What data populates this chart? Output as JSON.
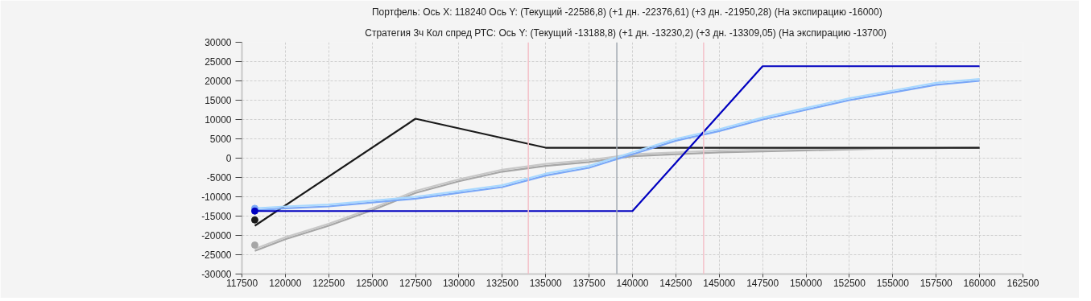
{
  "chart_data": {
    "type": "line",
    "title": "Портфель: Ось X: 118240 Ось Y:  (Текущий -22586,8)  (+1 дн. -22376,61)  (+3 дн. -21950,28)  (На экспирацию -16000)",
    "subtitle": "Стратегия 3ч Кол спред РТС:  Ось Y:  (Текущий -13188,8)  (+1 дн. -13230,2)  (+3 дн. -13309,05)  (На экспирацию -13700)",
    "xlim": [
      117500,
      162500
    ],
    "xticks": [
      117500,
      120000,
      122500,
      125000,
      127500,
      130000,
      132500,
      135000,
      137500,
      140000,
      142500,
      145000,
      147500,
      150000,
      152500,
      155000,
      157500,
      160000,
      162500
    ],
    "ylim": [
      -30000,
      30000
    ],
    "yticks": [
      -30000,
      -25000,
      -20000,
      -15000,
      -10000,
      -5000,
      0,
      5000,
      10000,
      15000,
      20000,
      25000,
      30000
    ],
    "grid": true,
    "line_style": "solid",
    "marker": "none",
    "ref_lines": [
      {
        "axis": "x",
        "value": 134000,
        "color": "#f4c0c8"
      },
      {
        "axis": "x",
        "value": 139100,
        "color": "#a0a8b0"
      },
      {
        "axis": "x",
        "value": 144100,
        "color": "#f4c0c8"
      }
    ],
    "series": [
      {
        "color": "#a6a6a6",
        "x": [
          118240,
          120000,
          122500,
          125000,
          127500,
          130000,
          132500,
          135000,
          137500,
          140000,
          142500,
          145000,
          150000,
          155000,
          160000
        ],
        "values": [
          -24000,
          -21000,
          -17500,
          -13500,
          -9000,
          -6000,
          -3500,
          -2000,
          -1000,
          500,
          1000,
          1500,
          2000,
          2500,
          2700
        ]
      },
      {
        "color": "#c8c8c8",
        "x": [
          118240,
          120000,
          122500,
          125000,
          127500,
          130000,
          132500,
          135000,
          137500,
          140000,
          142500,
          145000,
          150000,
          155000,
          160000
        ],
        "values": [
          -23500,
          -20500,
          -17000,
          -13000,
          -8500,
          -5500,
          -3000,
          -1500,
          -500,
          1000,
          1500,
          2000,
          2500,
          2500,
          2700
        ]
      },
      {
        "color": "#1a1a1a",
        "x": [
          118240,
          127500,
          135000,
          160000
        ],
        "values": [
          -17500,
          10200,
          2700,
          2700
        ]
      },
      {
        "color": "#7aa7f7",
        "x": [
          118240,
          120000,
          122500,
          125000,
          127500,
          130000,
          132500,
          135000,
          137500,
          140000,
          142500,
          145000,
          147500,
          150000,
          152500,
          155000,
          157500,
          160000
        ],
        "values": [
          -13500,
          -13000,
          -12500,
          -11500,
          -10500,
          -9000,
          -7500,
          -4500,
          -2500,
          1000,
          4500,
          7000,
          10000,
          12500,
          15000,
          17000,
          19000,
          20000
        ]
      },
      {
        "color": "#a8d8ff",
        "x": [
          118240,
          120000,
          122500,
          125000,
          127500,
          130000,
          132500,
          135000,
          137500,
          140000,
          142500,
          145000,
          147500,
          150000,
          152500,
          155000,
          157500,
          160000
        ],
        "values": [
          -13000,
          -12500,
          -12000,
          -11000,
          -10000,
          -8500,
          -7000,
          -4000,
          -2000,
          1500,
          5000,
          7500,
          10500,
          13000,
          15500,
          17500,
          19500,
          20500
        ]
      },
      {
        "color": "#0000c0",
        "x": [
          118240,
          140000,
          147500,
          160000
        ],
        "values": [
          -13700,
          -13700,
          23800,
          23800
        ]
      },
      {
        "type": "scatter",
        "marker": "circle",
        "color": "#1a1a1a",
        "x": [
          118240
        ],
        "values": [
          -16000
        ]
      },
      {
        "type": "scatter",
        "marker": "circle",
        "color": "#a6a6a6",
        "x": [
          118240
        ],
        "values": [
          -22500
        ]
      },
      {
        "type": "scatter",
        "marker": "circle",
        "color": "#7aa7f7",
        "x": [
          118240
        ],
        "values": [
          -13000
        ]
      },
      {
        "type": "scatter",
        "marker": "circle",
        "color": "#0000c0",
        "x": [
          118240
        ],
        "values": [
          -13700
        ]
      }
    ]
  }
}
